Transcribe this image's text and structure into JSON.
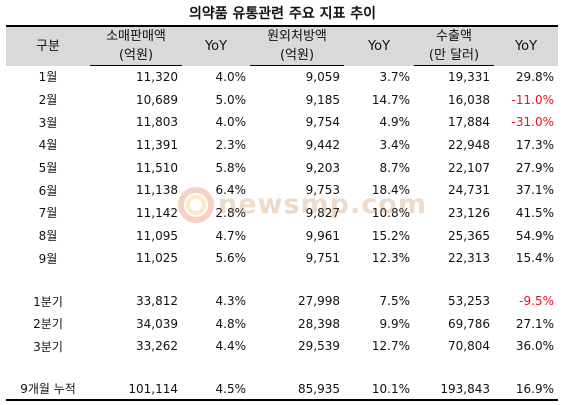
{
  "title": "의약품 유통관련 주요 지표 추이",
  "headers": {
    "category": "구분",
    "retail": "소매판매액",
    "retail_unit": "(억원)",
    "yoy": "YoY",
    "hospital": "원외처방액",
    "hospital_unit": "(억원)",
    "export": "수출액",
    "export_unit": "(만 달러)"
  },
  "rows": [
    {
      "label": "1월",
      "retail": "11,320",
      "retail_yoy": "4.0%",
      "rx": "9,059",
      "rx_yoy": "3.7%",
      "export": "19,331",
      "export_yoy": "29.8%",
      "neg": false
    },
    {
      "label": "2월",
      "retail": "10,689",
      "retail_yoy": "5.0%",
      "rx": "9,185",
      "rx_yoy": "14.7%",
      "export": "16,038",
      "export_yoy": "-11.0%",
      "neg": true
    },
    {
      "label": "3월",
      "retail": "11,803",
      "retail_yoy": "4.0%",
      "rx": "9,754",
      "rx_yoy": "4.9%",
      "export": "17,884",
      "export_yoy": "-31.0%",
      "neg": true
    },
    {
      "label": "4월",
      "retail": "11,391",
      "retail_yoy": "2.3%",
      "rx": "9,442",
      "rx_yoy": "3.4%",
      "export": "22,948",
      "export_yoy": "17.3%",
      "neg": false
    },
    {
      "label": "5월",
      "retail": "11,510",
      "retail_yoy": "5.8%",
      "rx": "9,203",
      "rx_yoy": "8.7%",
      "export": "22,107",
      "export_yoy": "27.9%",
      "neg": false
    },
    {
      "label": "6월",
      "retail": "11,138",
      "retail_yoy": "6.4%",
      "rx": "9,753",
      "rx_yoy": "18.4%",
      "export": "24,731",
      "export_yoy": "37.1%",
      "neg": false
    },
    {
      "label": "7월",
      "retail": "11,142",
      "retail_yoy": "2.8%",
      "rx": "9,827",
      "rx_yoy": "10.8%",
      "export": "23,126",
      "export_yoy": "41.5%",
      "neg": false
    },
    {
      "label": "8월",
      "retail": "11,095",
      "retail_yoy": "4.7%",
      "rx": "9,961",
      "rx_yoy": "15.2%",
      "export": "25,365",
      "export_yoy": "54.9%",
      "neg": false
    },
    {
      "label": "9월",
      "retail": "11,025",
      "retail_yoy": "5.6%",
      "rx": "9,751",
      "rx_yoy": "12.3%",
      "export": "22,313",
      "export_yoy": "15.4%",
      "neg": false
    }
  ],
  "quarters": [
    {
      "label": "1분기",
      "retail": "33,812",
      "retail_yoy": "4.3%",
      "rx": "27,998",
      "rx_yoy": "7.5%",
      "export": "53,253",
      "export_yoy": "-9.5%",
      "neg": true
    },
    {
      "label": "2분기",
      "retail": "34,039",
      "retail_yoy": "4.8%",
      "rx": "28,398",
      "rx_yoy": "9.9%",
      "export": "69,786",
      "export_yoy": "27.1%",
      "neg": false
    },
    {
      "label": "3분기",
      "retail": "33,262",
      "retail_yoy": "4.4%",
      "rx": "29,539",
      "rx_yoy": "12.7%",
      "export": "70,804",
      "export_yoy": "36.0%",
      "neg": false
    }
  ],
  "total": {
    "label": "9개월 누적",
    "retail": "101,114",
    "retail_yoy": "4.5%",
    "rx": "85,935",
    "rx_yoy": "10.1%",
    "export": "193,843",
    "export_yoy": "16.9%",
    "neg": false
  },
  "watermark": {
    "text": "newsmp.com",
    "icon": "newsmp-logo-icon"
  }
}
